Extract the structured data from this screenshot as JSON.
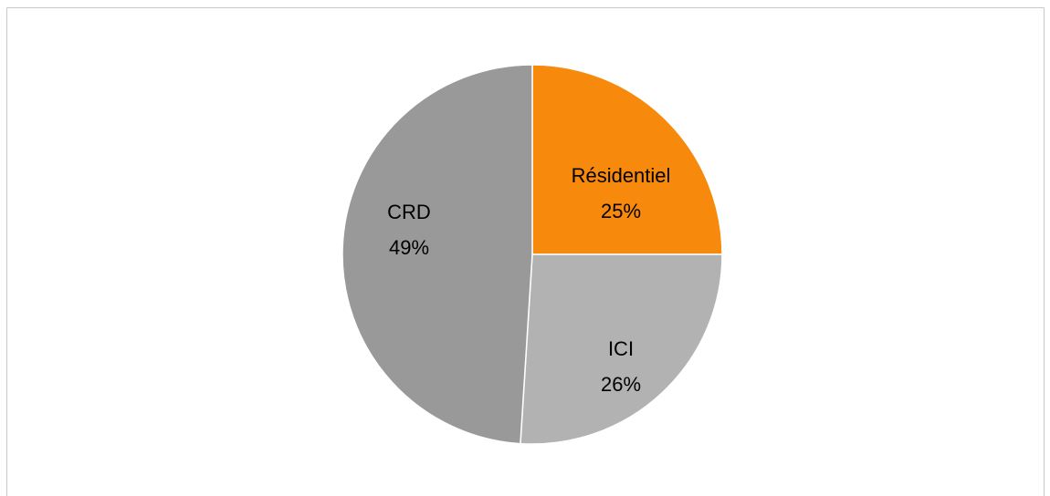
{
  "chart_data": {
    "type": "pie",
    "title": "",
    "slices": [
      {
        "label": "Résidentiel",
        "value": 25,
        "color": "#F7890C"
      },
      {
        "label": "ICI",
        "value": 26,
        "color": "#B2B2B2"
      },
      {
        "label": "CRD",
        "value": 49,
        "color": "#999999"
      }
    ]
  }
}
